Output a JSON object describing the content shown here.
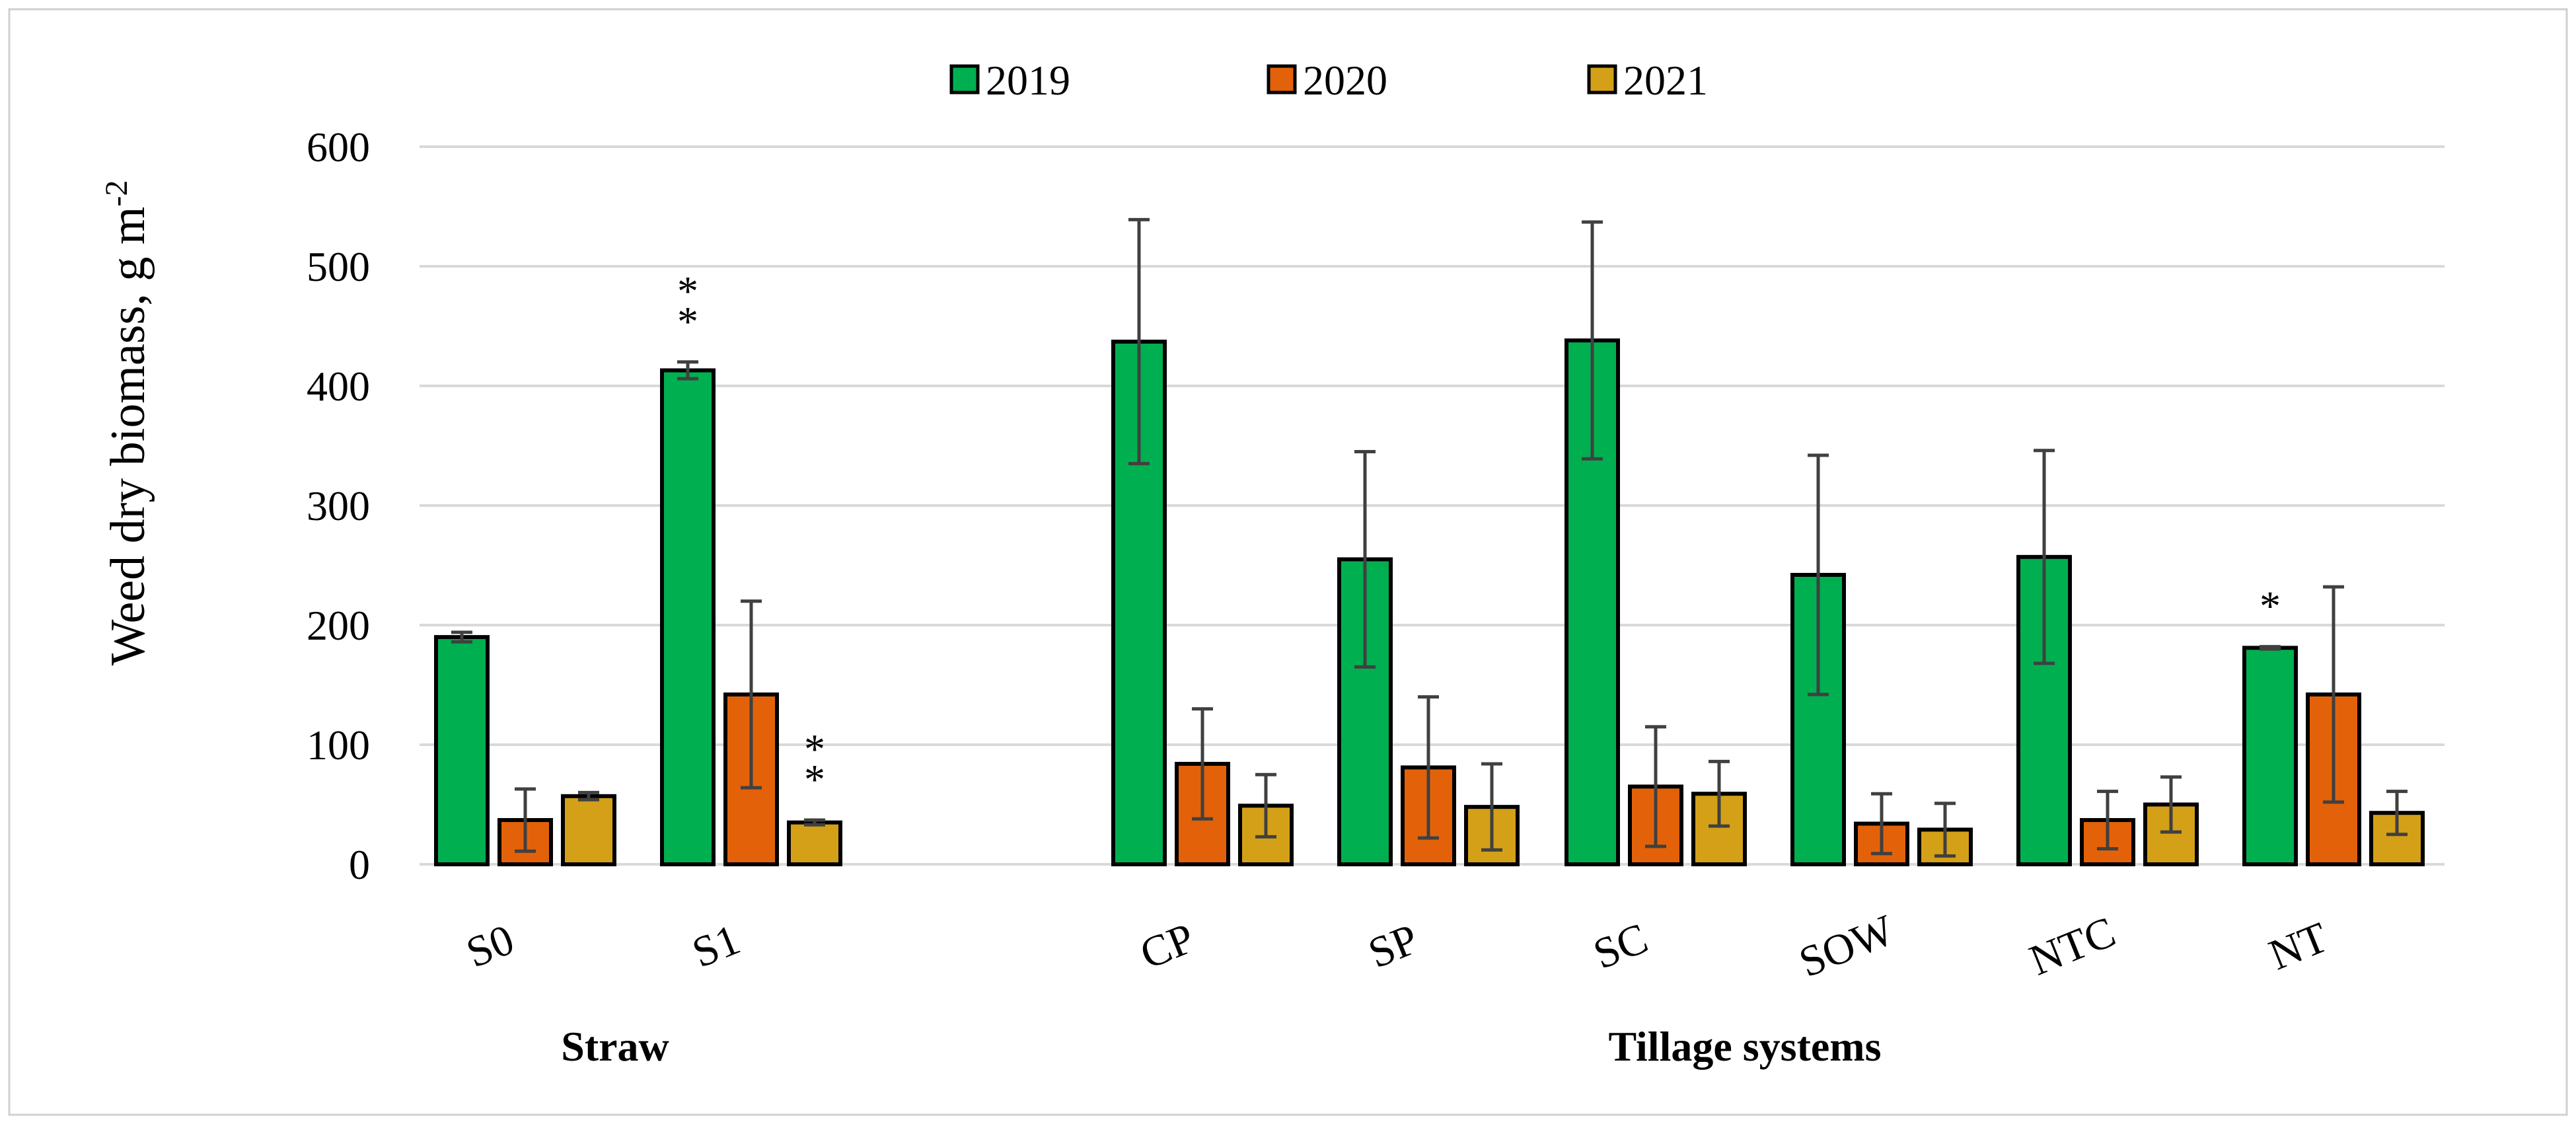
{
  "chart_data": {
    "type": "bar",
    "title": "",
    "ylabel": "Weed dry biomass, g m",
    "ylabel_superscript": "-2",
    "ylim": [
      0,
      600
    ],
    "yticks": [
      0,
      100,
      200,
      300,
      400,
      500,
      600
    ],
    "grid": true,
    "legend_position": "top-center",
    "categories": [
      "S0",
      "S1",
      "CP",
      "SP",
      "SC",
      "SOW",
      "NTC",
      "NT"
    ],
    "groups": [
      {
        "label": "Straw",
        "categories": [
          "S0",
          "S1"
        ]
      },
      {
        "label": "Tillage systems",
        "categories": [
          "CP",
          "SP",
          "SC",
          "SOW",
          "NTC",
          "NT"
        ]
      }
    ],
    "series": [
      {
        "name": "2019",
        "color": "#00B050",
        "values": [
          190,
          413,
          437,
          255,
          438,
          242,
          257,
          181
        ],
        "errors": [
          4,
          7,
          102,
          90,
          99,
          100,
          89,
          1
        ]
      },
      {
        "name": "2020",
        "color": "#E36209",
        "values": [
          37,
          142,
          84,
          81,
          65,
          34,
          37,
          142
        ],
        "errors": [
          26,
          78,
          46,
          59,
          50,
          25,
          24,
          90
        ]
      },
      {
        "name": "2021",
        "color": "#D4A017",
        "values": [
          57,
          35,
          49,
          48,
          59,
          29,
          50,
          43
        ],
        "errors": [
          3,
          2,
          26,
          36,
          27,
          22,
          23,
          18
        ]
      }
    ],
    "annotations": [
      {
        "category": "S1",
        "series": "2019",
        "text": "**"
      },
      {
        "category": "S1",
        "series": "2021",
        "text": "**"
      },
      {
        "category": "NT",
        "series": "2019",
        "text": "*"
      }
    ]
  }
}
